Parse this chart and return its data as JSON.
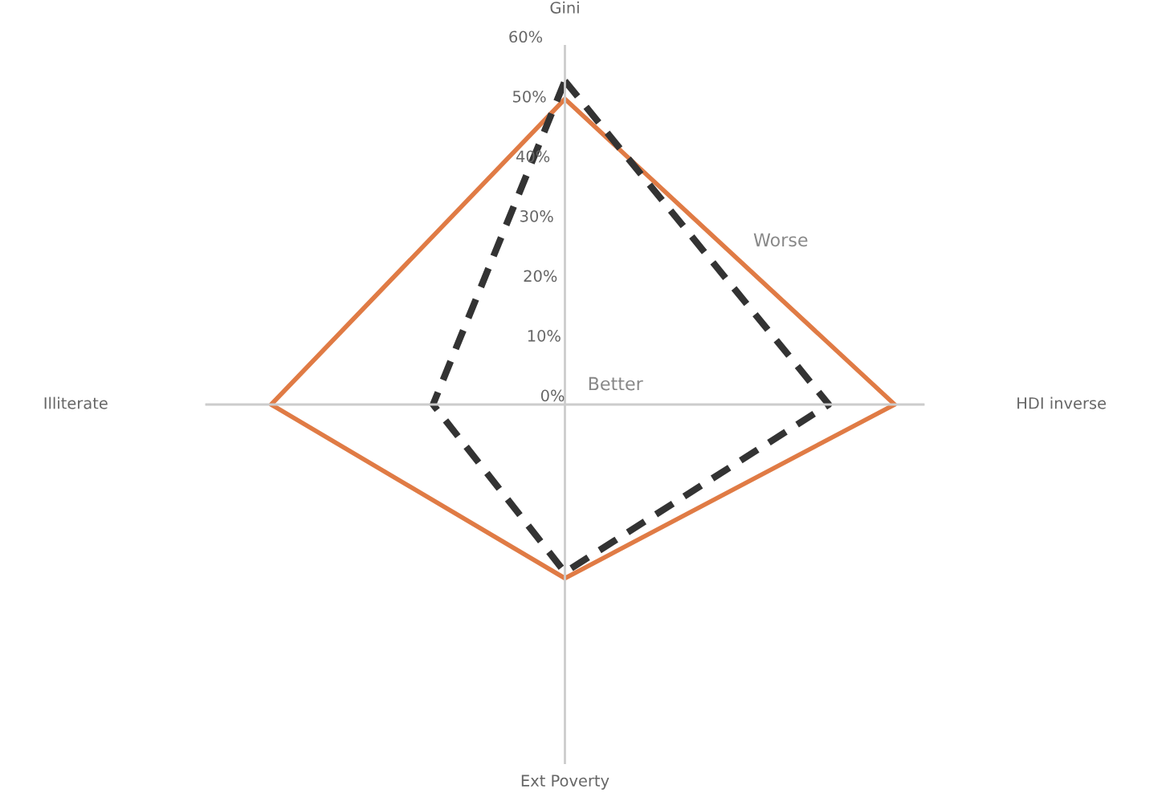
{
  "chart_data": {
    "type": "radar",
    "categories": [
      "Gini",
      "HDI inverse",
      "Ext Poverty",
      "Illiterate"
    ],
    "series": [
      {
        "color": "#e07b45",
        "values": [
          51,
          55,
          29,
          49
        ],
        "line_style": "solid"
      },
      {
        "color": "#333333",
        "values": [
          54,
          44,
          28,
          22
        ],
        "line_style": "dashed"
      }
    ],
    "ylim": [
      0,
      60
    ],
    "yticks": [
      {
        "value": 0,
        "label": "0%"
      },
      {
        "value": 10,
        "label": "10%"
      },
      {
        "value": 20,
        "label": "20%"
      },
      {
        "value": 30,
        "label": "30%"
      },
      {
        "value": 40,
        "label": "40%"
      },
      {
        "value": 50,
        "label": "50%"
      },
      {
        "value": 60,
        "label": "60%"
      }
    ],
    "annotations": [
      "Worse",
      "Better"
    ],
    "grid": "x",
    "marker": "none"
  }
}
